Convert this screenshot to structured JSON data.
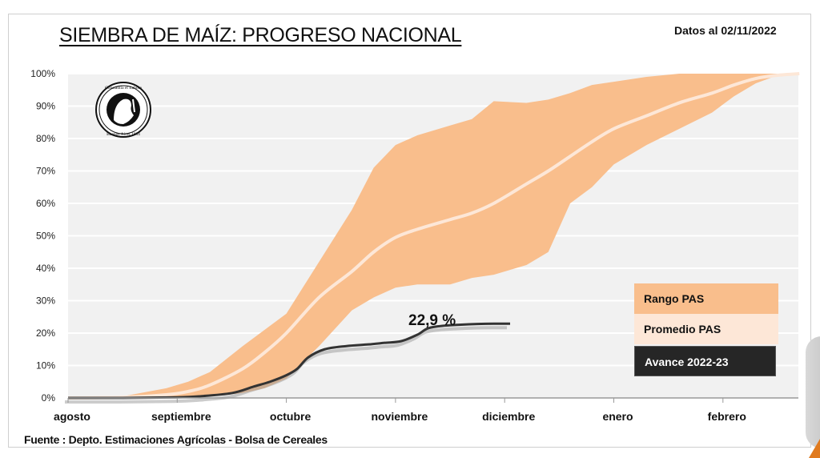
{
  "header": {
    "title": "SIEMBRA DE MAÍZ: PROGRESO NACIONAL",
    "date_label": "Datos al 02/11/2022"
  },
  "footer": {
    "source": "Fuente : Depto. Estimaciones Agrícolas - Bolsa de Cereales"
  },
  "legend": {
    "range": "Rango PAS",
    "average": "Promedio PAS",
    "advance": "Avance 2022-23"
  },
  "annotation": {
    "current_value": "22,9 %"
  },
  "logo": {
    "icon": "bolsa-de-cereales-seal-icon",
    "top_text": "Constantia et Labore",
    "bottom_text": "Buenos Aires 1854"
  },
  "colors": {
    "range": "#f9be8c",
    "average": "#fde7d7",
    "advance": "#333333",
    "plot_bg": "#f1f1f1",
    "grid": "#ffffff"
  },
  "chart_data": {
    "type": "area",
    "title": "SIEMBRA DE MAÍZ: PROGRESO NACIONAL",
    "xlabel": "",
    "ylabel": "",
    "x_unit": "months since start of agosto",
    "categories": [
      "agosto",
      "septiembre",
      "octubre",
      "noviembre",
      "diciembre",
      "enero",
      "febrero"
    ],
    "xlim": [
      0,
      6.7
    ],
    "ylim": [
      0,
      100
    ],
    "yticks": [
      "0%",
      "10%",
      "20%",
      "30%",
      "40%",
      "50%",
      "60%",
      "70%",
      "80%",
      "90%",
      "100%"
    ],
    "grid": true,
    "legend_position": "bottom-right",
    "series": [
      {
        "name": "Rango PAS",
        "kind": "band",
        "x": [
          0,
          0.5,
          0.9,
          1.1,
          1.3,
          1.6,
          1.8,
          2.0,
          2.3,
          2.6,
          2.8,
          3.0,
          3.2,
          3.5,
          3.7,
          3.9,
          4.2,
          4.4,
          4.6,
          4.8,
          5.0,
          5.3,
          5.6,
          5.9,
          6.1,
          6.3,
          6.5,
          6.7
        ],
        "upper": [
          0,
          0.5,
          3,
          5,
          8,
          16,
          21,
          26,
          42,
          58,
          71,
          78,
          81,
          84,
          86,
          91.5,
          91,
          92,
          94,
          96.5,
          97.5,
          99,
          100,
          100,
          100,
          100,
          100,
          100
        ],
        "lower": [
          0,
          0,
          0,
          0,
          0.5,
          1.5,
          3,
          6,
          16,
          27,
          31,
          34,
          35,
          35,
          37,
          38,
          41,
          45,
          60,
          65,
          72,
          78,
          83,
          88,
          93,
          97,
          99.5,
          100
        ]
      },
      {
        "name": "Promedio PAS",
        "kind": "line",
        "x": [
          0,
          0.5,
          0.9,
          1.1,
          1.3,
          1.6,
          1.8,
          2.0,
          2.3,
          2.6,
          2.8,
          3.0,
          3.2,
          3.5,
          3.7,
          3.9,
          4.2,
          4.4,
          4.6,
          4.8,
          5.0,
          5.3,
          5.6,
          5.9,
          6.1,
          6.3,
          6.5,
          6.7
        ],
        "values": [
          0,
          0.2,
          1,
          2,
          4,
          9,
          14,
          20,
          31,
          39,
          45,
          49.5,
          52,
          55,
          57,
          60,
          66,
          70,
          74.5,
          79,
          83,
          87,
          91,
          94,
          96.5,
          98.5,
          99.5,
          100
        ]
      },
      {
        "name": "Avance 2022-23",
        "kind": "line",
        "x": [
          0,
          0.5,
          1.0,
          1.2,
          1.5,
          1.7,
          1.85,
          2.0,
          2.1,
          2.2,
          2.35,
          2.55,
          2.75,
          2.9,
          3.05,
          3.2,
          3.3,
          3.45,
          3.6,
          3.75,
          3.9,
          4.05
        ],
        "values": [
          0,
          0,
          0.2,
          0.5,
          1.5,
          3.5,
          5,
          7,
          9,
          12.5,
          15,
          16,
          16.5,
          17,
          17.5,
          19.5,
          21.5,
          22.3,
          22.6,
          22.8,
          22.9,
          22.9
        ],
        "label": "22,9 %"
      }
    ]
  }
}
